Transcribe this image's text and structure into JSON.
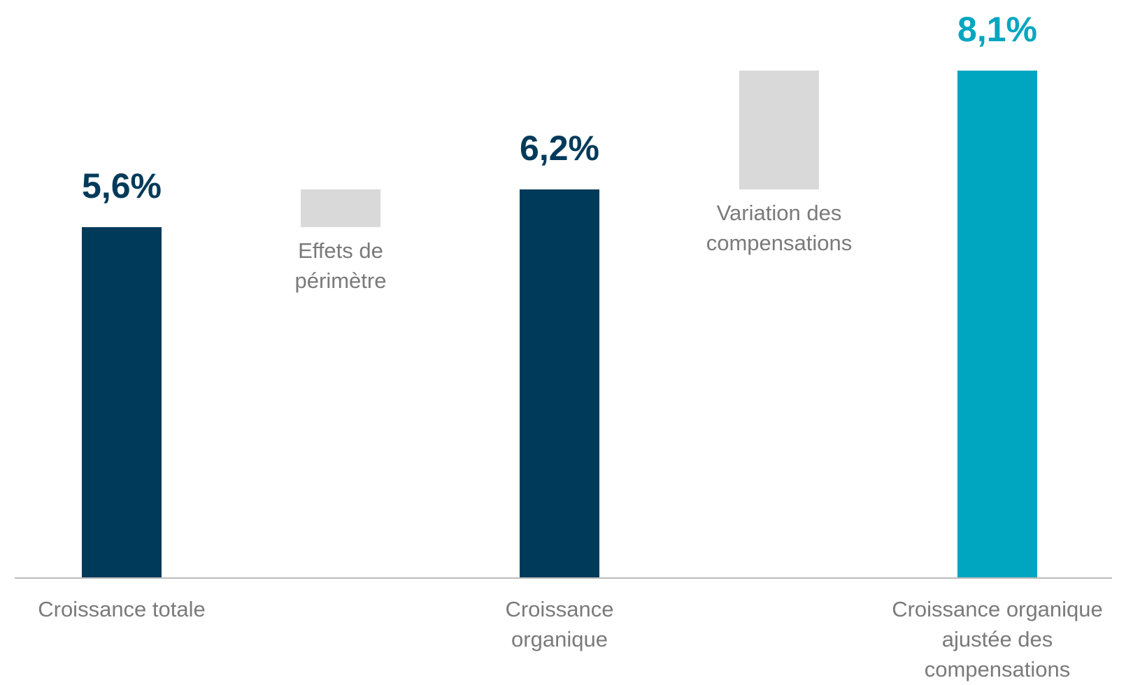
{
  "chart_data": {
    "type": "waterfall",
    "categories": [
      "Croissance totale",
      "Effets de périmètre",
      "Croissance organique",
      "Variation des compensations",
      "Croissance organique ajustée des compensations"
    ],
    "measure": [
      "absolute",
      "relative",
      "absolute",
      "relative",
      "absolute"
    ],
    "values": [
      5.6,
      0.6,
      6.2,
      1.9,
      8.1
    ],
    "value_labels": [
      "5,6%",
      null,
      "6,2%",
      null,
      "8,1%"
    ],
    "colors": [
      "#003a5a",
      "#d9d9d9",
      "#003a5a",
      "#d9d9d9",
      "#00a6c0"
    ]
  }
}
